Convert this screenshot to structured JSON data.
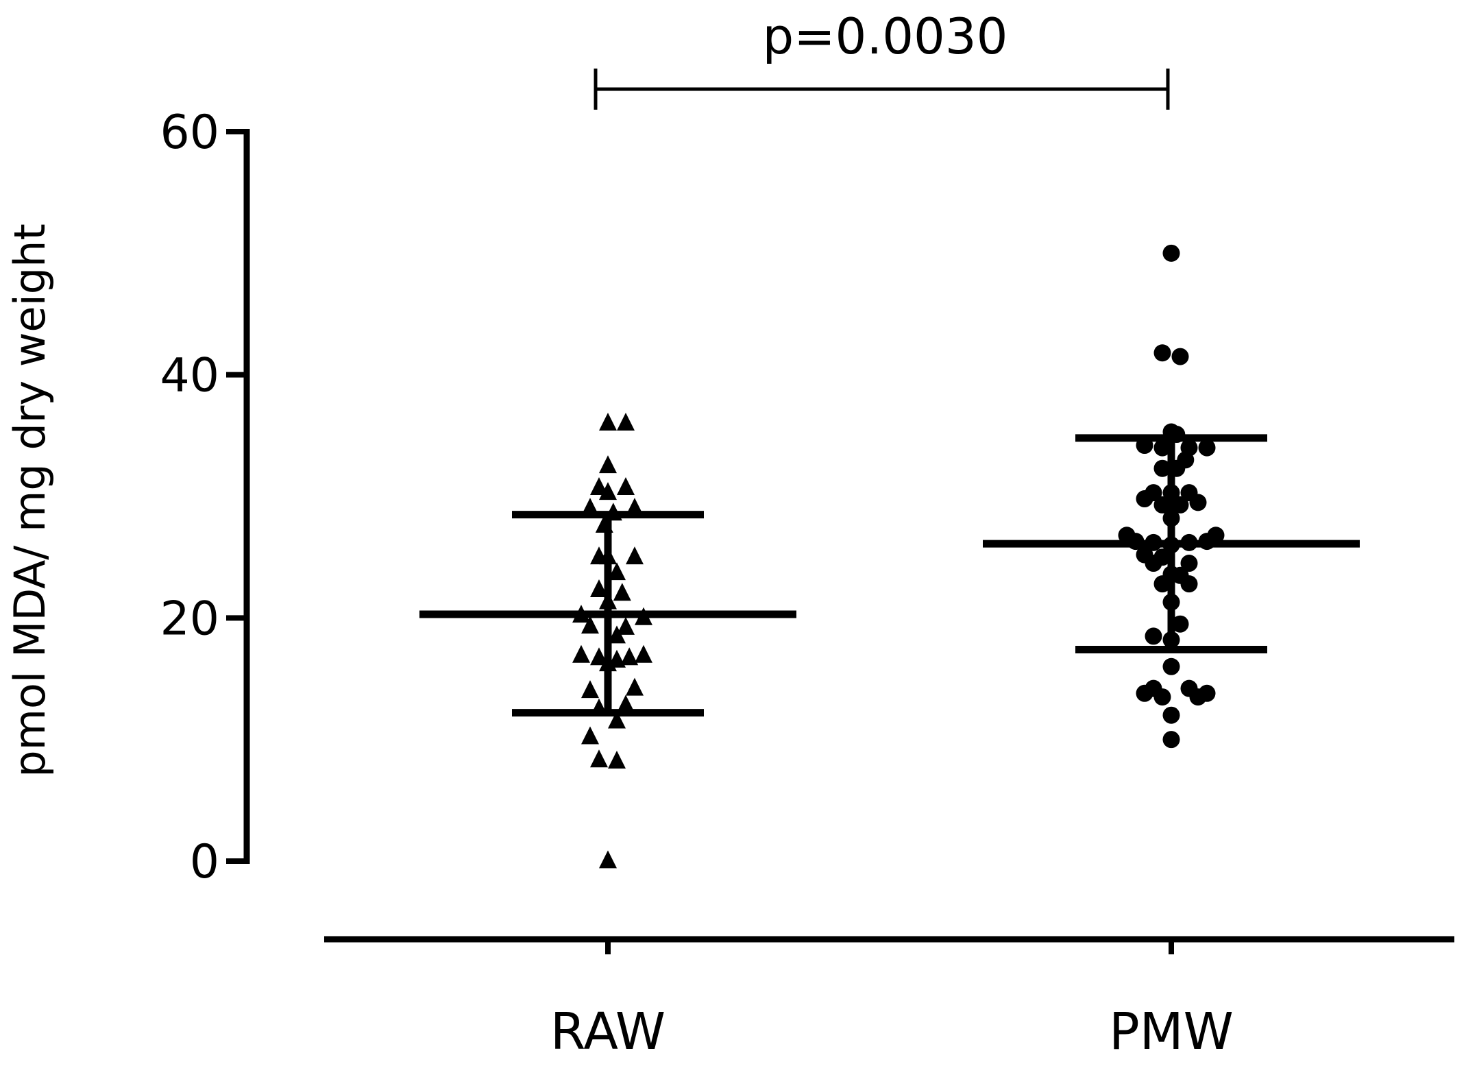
{
  "chart_data": {
    "type": "scatter",
    "ylabel": "pmol MDA/ mg dry weight",
    "categories": [
      "RAW",
      "PMW"
    ],
    "ylim": [
      0,
      60
    ],
    "yticks": [
      0,
      20,
      40,
      60
    ],
    "grid": false,
    "series": [
      {
        "category": "RAW",
        "marker": "triangle",
        "mean": 20.3,
        "sd_upper": 28.5,
        "sd_lower": 12.2,
        "points": [
          {
            "dx": 0.5,
            "y": 36
          },
          {
            "dx": 0.6,
            "y": 36
          },
          {
            "dx": 0.5,
            "y": 32.5
          },
          {
            "dx": 0.45,
            "y": 30.7
          },
          {
            "dx": 0.5,
            "y": 30.3
          },
          {
            "dx": 0.6,
            "y": 30.7
          },
          {
            "dx": 0.4,
            "y": 29
          },
          {
            "dx": 0.53,
            "y": 28.6
          },
          {
            "dx": 0.65,
            "y": 29
          },
          {
            "dx": 0.48,
            "y": 27.6
          },
          {
            "dx": 0.45,
            "y": 25
          },
          {
            "dx": 0.5,
            "y": 25
          },
          {
            "dx": 0.65,
            "y": 25
          },
          {
            "dx": 0.55,
            "y": 23.7
          },
          {
            "dx": 0.45,
            "y": 22.3
          },
          {
            "dx": 0.58,
            "y": 22
          },
          {
            "dx": 0.5,
            "y": 21.3
          },
          {
            "dx": 0.35,
            "y": 20.2
          },
          {
            "dx": 0.7,
            "y": 20
          },
          {
            "dx": 0.4,
            "y": 19.3
          },
          {
            "dx": 0.6,
            "y": 19.2
          },
          {
            "dx": 0.55,
            "y": 18.5
          },
          {
            "dx": 0.35,
            "y": 16.9
          },
          {
            "dx": 0.45,
            "y": 16.7
          },
          {
            "dx": 0.62,
            "y": 16.7
          },
          {
            "dx": 0.7,
            "y": 16.9
          },
          {
            "dx": 0.5,
            "y": 16.2
          },
          {
            "dx": 0.55,
            "y": 16.5
          },
          {
            "dx": 0.4,
            "y": 14
          },
          {
            "dx": 0.65,
            "y": 14.2
          },
          {
            "dx": 0.45,
            "y": 12.5
          },
          {
            "dx": 0.6,
            "y": 12.8
          },
          {
            "dx": 0.55,
            "y": 11.5
          },
          {
            "dx": 0.4,
            "y": 10.2
          },
          {
            "dx": 0.45,
            "y": 8.3
          },
          {
            "dx": 0.55,
            "y": 8.2
          },
          {
            "dx": 0.5,
            "y": 0
          }
        ]
      },
      {
        "category": "PMW",
        "marker": "circle",
        "mean": 26.1,
        "sd_upper": 34.8,
        "sd_lower": 17.4,
        "points": [
          {
            "dx": 0.5,
            "y": 50
          },
          {
            "dx": 0.45,
            "y": 41.8
          },
          {
            "dx": 0.55,
            "y": 41.5
          },
          {
            "dx": 0.5,
            "y": 35.3
          },
          {
            "dx": 0.53,
            "y": 35.1
          },
          {
            "dx": 0.35,
            "y": 34.2
          },
          {
            "dx": 0.45,
            "y": 34
          },
          {
            "dx": 0.6,
            "y": 34
          },
          {
            "dx": 0.7,
            "y": 34
          },
          {
            "dx": 0.58,
            "y": 33
          },
          {
            "dx": 0.45,
            "y": 32.3
          },
          {
            "dx": 0.53,
            "y": 32.3
          },
          {
            "dx": 0.4,
            "y": 30.3
          },
          {
            "dx": 0.5,
            "y": 30.3
          },
          {
            "dx": 0.6,
            "y": 30.3
          },
          {
            "dx": 0.35,
            "y": 29.8
          },
          {
            "dx": 0.65,
            "y": 29.5
          },
          {
            "dx": 0.45,
            "y": 29.3
          },
          {
            "dx": 0.55,
            "y": 29.3
          },
          {
            "dx": 0.5,
            "y": 28.2
          },
          {
            "dx": 0.25,
            "y": 26.8
          },
          {
            "dx": 0.75,
            "y": 26.8
          },
          {
            "dx": 0.3,
            "y": 26.3
          },
          {
            "dx": 0.4,
            "y": 26.2
          },
          {
            "dx": 0.5,
            "y": 26
          },
          {
            "dx": 0.6,
            "y": 26.2
          },
          {
            "dx": 0.7,
            "y": 26.3
          },
          {
            "dx": 0.35,
            "y": 25.2
          },
          {
            "dx": 0.45,
            "y": 25
          },
          {
            "dx": 0.4,
            "y": 24.5
          },
          {
            "dx": 0.6,
            "y": 24.5
          },
          {
            "dx": 0.5,
            "y": 23.6
          },
          {
            "dx": 0.55,
            "y": 23.5
          },
          {
            "dx": 0.45,
            "y": 22.8
          },
          {
            "dx": 0.6,
            "y": 22.8
          },
          {
            "dx": 0.5,
            "y": 21.3
          },
          {
            "dx": 0.55,
            "y": 19.5
          },
          {
            "dx": 0.4,
            "y": 18.5
          },
          {
            "dx": 0.5,
            "y": 18.2
          },
          {
            "dx": 0.5,
            "y": 16
          },
          {
            "dx": 0.4,
            "y": 14.2
          },
          {
            "dx": 0.6,
            "y": 14.2
          },
          {
            "dx": 0.35,
            "y": 13.8
          },
          {
            "dx": 0.7,
            "y": 13.8
          },
          {
            "dx": 0.45,
            "y": 13.5
          },
          {
            "dx": 0.65,
            "y": 13.5
          },
          {
            "dx": 0.5,
            "y": 12
          },
          {
            "dx": 0.5,
            "y": 10
          }
        ]
      }
    ],
    "annotations": [
      {
        "type": "significance-bracket",
        "from": "RAW",
        "to": "PMW",
        "text": "p=0.0030"
      }
    ]
  }
}
